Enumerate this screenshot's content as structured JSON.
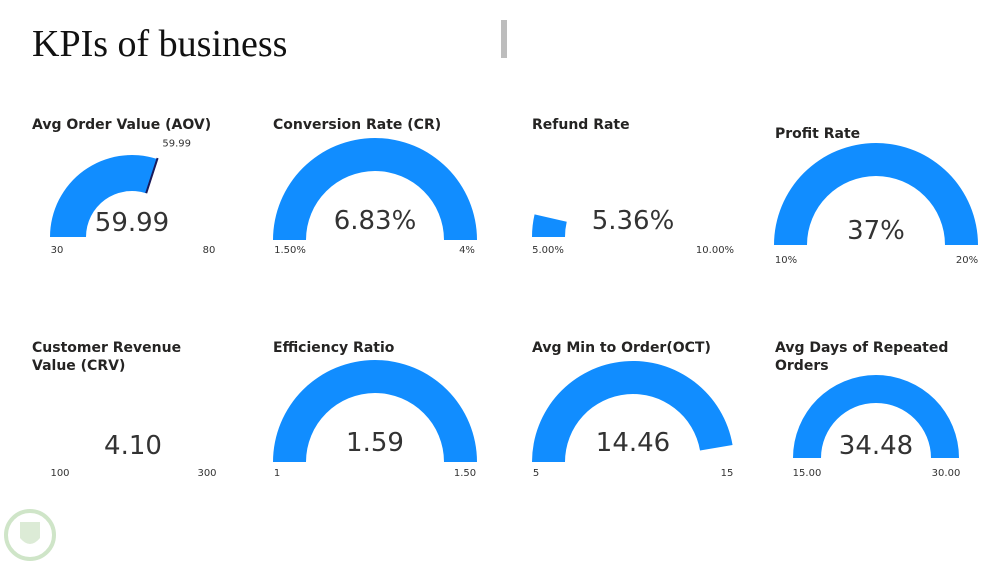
{
  "title": "KPIs of business",
  "chart_data": [
    {
      "type": "gauge",
      "title": "Avg Order Value (AOV)",
      "value": 59.99,
      "value_label": "59.99",
      "target": 59.99,
      "target_label": "59.99",
      "ylim": [
        30,
        80
      ],
      "yticks": [
        30,
        80
      ],
      "color": "#118dff"
    },
    {
      "type": "gauge",
      "title": "Conversion Rate (CR)",
      "value": 6.83,
      "value_label": "6.83%",
      "ylim": [
        1.5,
        4
      ],
      "yticks": [
        {
          "value": 1.5,
          "label": "1.50%"
        },
        {
          "value": 4,
          "label": "4%"
        }
      ],
      "color": "#118dff"
    },
    {
      "type": "gauge",
      "title": "Refund Rate",
      "value": 5.36,
      "value_label": "5.36%",
      "ylim": [
        5,
        10
      ],
      "yticks": [
        {
          "value": 5,
          "label": "5.00%"
        },
        {
          "value": 10,
          "label": "10.00%"
        }
      ],
      "color": "#118dff"
    },
    {
      "type": "gauge",
      "title": "Profit Rate",
      "value": 37,
      "value_label": "37%",
      "ylim": [
        10,
        20
      ],
      "yticks": [
        {
          "value": 10,
          "label": "10%"
        },
        {
          "value": 20,
          "label": "20%"
        }
      ],
      "color": "#118dff"
    },
    {
      "type": "gauge",
      "title": "Customer Revenue Value (CRV)",
      "value": 4.1,
      "value_label": "4.10",
      "ylim": [
        100,
        300
      ],
      "yticks": [
        100,
        300
      ],
      "color": "#118dff"
    },
    {
      "type": "gauge",
      "title": "Efficiency Ratio",
      "value": 1.59,
      "value_label": "1.59",
      "ylim": [
        1,
        1.5
      ],
      "yticks": [
        1,
        {
          "value": 1.5,
          "label": "1.50"
        }
      ],
      "color": "#118dff"
    },
    {
      "type": "gauge",
      "title": "Avg Min to Order(OCT)",
      "value": 14.46,
      "value_label": "14.46",
      "ylim": [
        5,
        15
      ],
      "yticks": [
        5,
        15
      ],
      "color": "#118dff"
    },
    {
      "type": "gauge",
      "title": "Avg Days of Repeated Orders",
      "value": 34.48,
      "value_label": "34.48",
      "ylim": [
        15,
        30
      ],
      "yticks": [
        {
          "value": 15,
          "label": "15.00"
        },
        {
          "value": 30,
          "label": "30.00"
        }
      ],
      "color": "#118dff"
    }
  ]
}
